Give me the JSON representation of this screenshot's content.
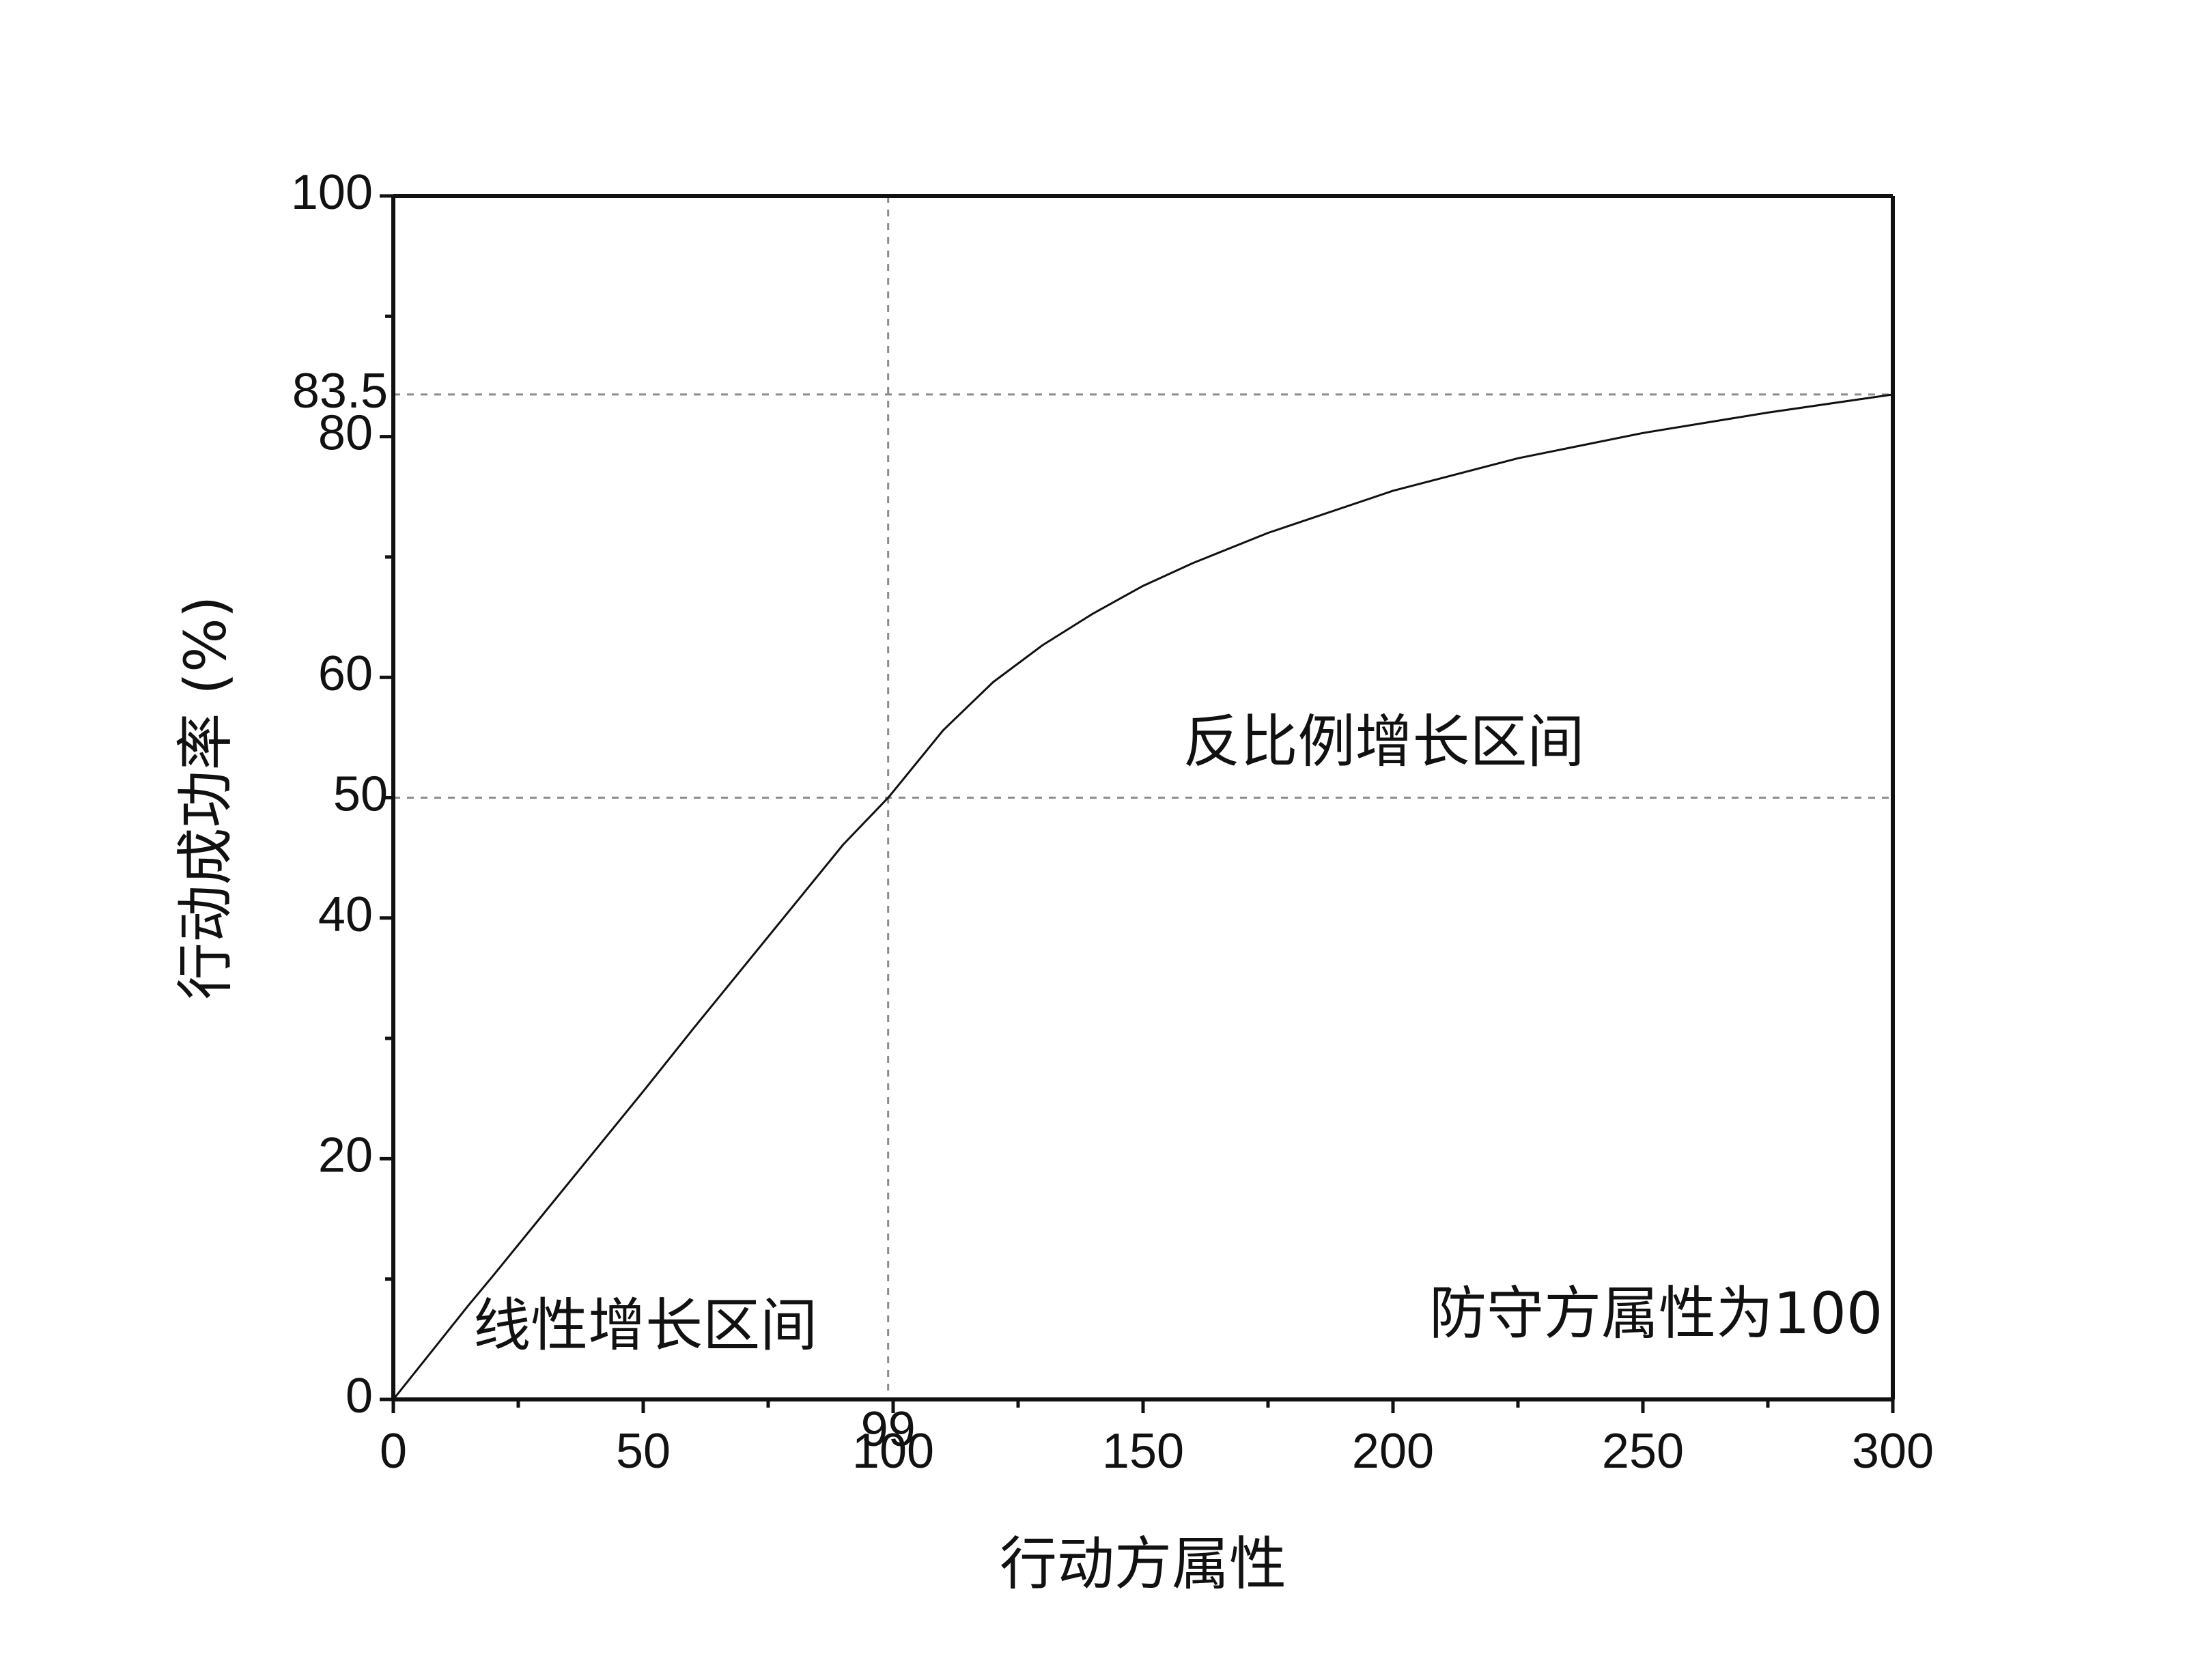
{
  "chart_data": {
    "type": "line",
    "title": "",
    "xlabel": "行动方属性",
    "ylabel": "行动成功率 (%)",
    "xlim": [
      0,
      300
    ],
    "ylim": [
      0,
      100
    ],
    "xticks": [
      0,
      50,
      100,
      150,
      200,
      250,
      300
    ],
    "yticks": [
      0,
      20,
      40,
      60,
      80,
      100
    ],
    "x_minor_step": 25,
    "y_minor_step": 10,
    "grid": false,
    "series": [
      {
        "x": [
          0,
          5,
          10,
          15,
          20,
          30,
          40,
          50,
          60,
          70,
          80,
          90,
          99,
          100,
          110,
          120,
          130,
          140,
          150,
          160,
          175,
          200,
          225,
          250,
          275,
          300
        ],
        "y": [
          0,
          2.6,
          5.2,
          7.8,
          10.3,
          15.4,
          20.5,
          25.6,
          30.8,
          35.9,
          41.0,
          46.1,
          50.0,
          50.5,
          55.6,
          59.6,
          62.7,
          65.3,
          67.6,
          69.5,
          72.0,
          75.5,
          78.2,
          80.3,
          82.0,
          83.5
        ],
        "color": "#111111"
      }
    ],
    "reference_lines": {
      "vertical": [
        {
          "x": 99,
          "label": "99"
        }
      ],
      "horizontal": [
        {
          "y": 83.5,
          "label": "83.5"
        },
        {
          "y": 50,
          "label": "50"
        }
      ]
    },
    "annotations": [
      {
        "id": "linear-region-label",
        "text": "线性增长区间",
        "x": 16,
        "y": 4.5
      },
      {
        "id": "inverse-region-label",
        "text": "反比例增长区间",
        "x": 158,
        "y": 53
      },
      {
        "id": "defense-label",
        "text": "防守方属性为100",
        "x": 298,
        "y": 5.5
      }
    ]
  }
}
